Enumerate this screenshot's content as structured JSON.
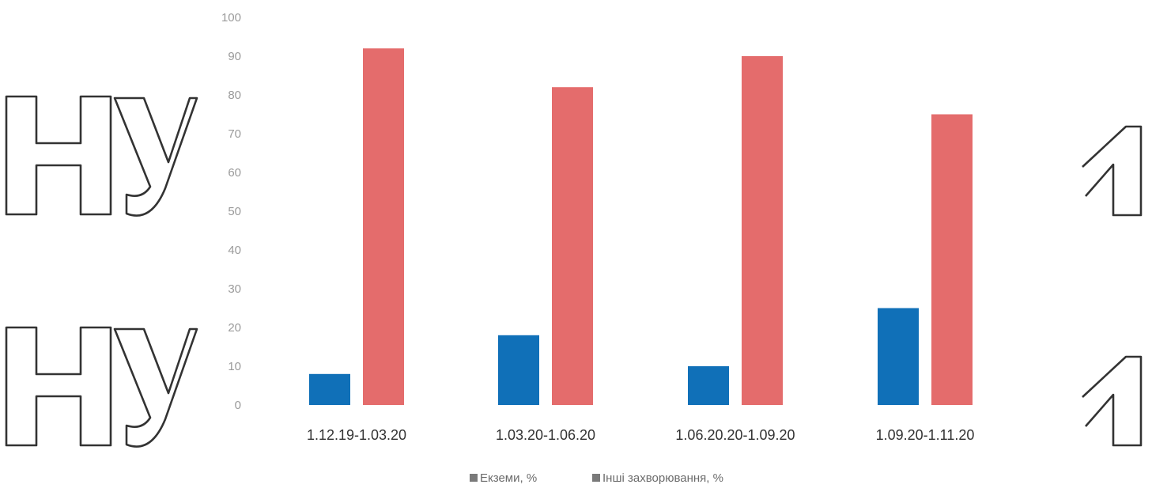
{
  "chart_data": {
    "type": "bar",
    "categories": [
      "1.12.19-1.03.20",
      "1.03.20-1.06.20",
      "1.06.20.20-1.09.20",
      "1.09.20-1.11.20"
    ],
    "series": [
      {
        "name": "Екземи, %",
        "color": "#1070b8",
        "values": [
          8,
          18,
          10,
          25
        ]
      },
      {
        "name": "Інші захворювання, %",
        "color": "#e46c6c",
        "values": [
          92,
          82,
          90,
          75
        ]
      }
    ],
    "yticks": [
      0,
      10,
      20,
      30,
      40,
      50,
      60,
      70,
      80,
      90,
      100
    ],
    "ylim": [
      0,
      100
    ],
    "grid": false,
    "legend_position": "bottom"
  },
  "decorations": {
    "left_text": [
      "Ну",
      "Ну"
    ],
    "right_text": [
      "1",
      "1"
    ]
  }
}
